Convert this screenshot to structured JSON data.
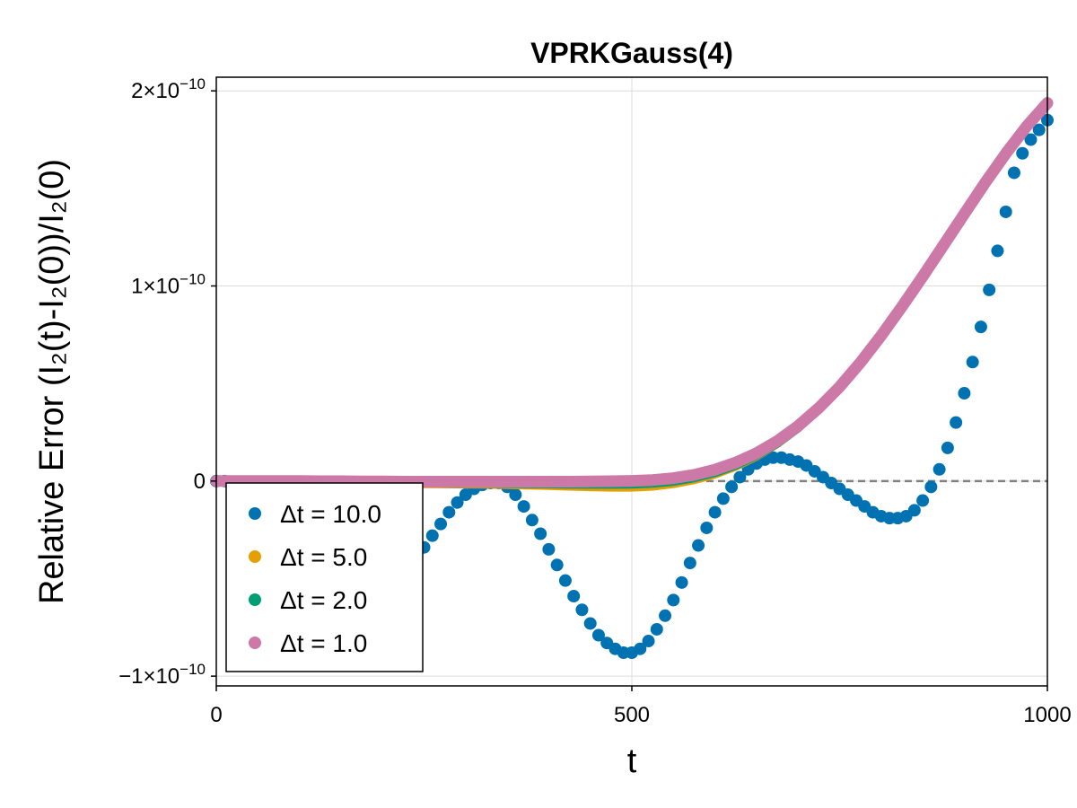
{
  "chart_data": {
    "type": "scatter",
    "title": "VPRKGauss(4)",
    "xlabel": "t",
    "ylabel": "Relative Error (I₂(t)-I₂(0))/I₂(0)",
    "xlim": [
      0,
      1000
    ],
    "ylim": [
      -1.05e-10,
      2.07e-10
    ],
    "x_ticks": [
      {
        "value": 0,
        "label": "0"
      },
      {
        "value": 500,
        "label": "500"
      },
      {
        "value": 1000,
        "label": "1000"
      }
    ],
    "y_ticks": [
      {
        "value": -1e-10,
        "mantissa": "−1×10",
        "exponent": "−10"
      },
      {
        "value": 0,
        "mantissa": "0",
        "exponent": ""
      },
      {
        "value": 1e-10,
        "mantissa": "1×10",
        "exponent": "−10"
      },
      {
        "value": 2e-10,
        "mantissa": "2×10",
        "exponent": "−10"
      }
    ],
    "grid": true,
    "reference_line": {
      "y": 0,
      "style": "dashed",
      "color": "#808080"
    },
    "legend_position": "bottom-left",
    "series": [
      {
        "name": "Δt = 10.0",
        "color": "#0072B2",
        "x": [
          0,
          10,
          20,
          30,
          40,
          50,
          60,
          70,
          80,
          90,
          100,
          110,
          120,
          130,
          140,
          150,
          160,
          170,
          180,
          190,
          200,
          210,
          220,
          230,
          240,
          250,
          260,
          270,
          280,
          290,
          300,
          310,
          320,
          330,
          340,
          350,
          360,
          370,
          380,
          390,
          400,
          410,
          420,
          430,
          440,
          450,
          460,
          470,
          480,
          490,
          500,
          510,
          520,
          530,
          540,
          550,
          560,
          570,
          580,
          590,
          600,
          610,
          620,
          630,
          640,
          650,
          660,
          670,
          680,
          690,
          700,
          710,
          720,
          730,
          740,
          750,
          760,
          770,
          780,
          790,
          800,
          810,
          820,
          830,
          840,
          850,
          860,
          870,
          880,
          890,
          900,
          910,
          920,
          930,
          940,
          950,
          960,
          970,
          980,
          990,
          1000
        ],
        "y": [
          0,
          0,
          -1e-12,
          -3e-12,
          -6e-12,
          -9e-12,
          -1.3e-11,
          -1.7e-11,
          -2.1e-11,
          -2.5e-11,
          -2.9e-11,
          -3.3e-11,
          -3.7e-11,
          -4.1e-11,
          -4.5e-11,
          -4.8e-11,
          -5e-11,
          -5.2e-11,
          -5.3e-11,
          -5.3e-11,
          -5.2e-11,
          -5e-11,
          -4.8e-11,
          -4.4e-11,
          -3.9e-11,
          -3.4e-11,
          -2.8e-11,
          -2.2e-11,
          -1.6e-11,
          -1.1e-11,
          -7e-12,
          -4e-12,
          -2e-12,
          -1e-12,
          -1e-12,
          -3e-12,
          -7e-12,
          -1.3e-11,
          -2e-11,
          -2.7e-11,
          -3.5e-11,
          -4.3e-11,
          -5.1e-11,
          -5.9e-11,
          -6.6e-11,
          -7.3e-11,
          -7.9e-11,
          -8.3e-11,
          -8.6e-11,
          -8.8e-11,
          -8.8e-11,
          -8.6e-11,
          -8.2e-11,
          -7.6e-11,
          -6.9e-11,
          -6.1e-11,
          -5.2e-11,
          -4.2e-11,
          -3.3e-11,
          -2.4e-11,
          -1.6e-11,
          -9e-12,
          -3e-12,
          2e-12,
          6e-12,
          9e-12,
          1.1e-11,
          1.2e-11,
          1.2e-11,
          1.1e-11,
          1e-11,
          8e-12,
          5e-12,
          2e-12,
          -1e-12,
          -4e-12,
          -7e-12,
          -1e-11,
          -1.3e-11,
          -1.6e-11,
          -1.8e-11,
          -1.9e-11,
          -1.9e-11,
          -1.8e-11,
          -1.5e-11,
          -1e-11,
          -3e-12,
          6e-12,
          1.7e-11,
          3e-11,
          4.5e-11,
          6.1e-11,
          7.9e-11,
          9.8e-11,
          1.18e-10,
          1.38e-10,
          1.58e-10,
          1.68e-10,
          1.75e-10,
          1.8e-10,
          1.85e-10
        ]
      },
      {
        "name": "Δt = 5.0",
        "color": "#E69F00",
        "x": [
          0,
          25,
          50,
          75,
          100,
          125,
          150,
          175,
          200,
          225,
          250,
          275,
          300,
          325,
          350,
          375,
          400,
          425,
          450,
          475,
          500,
          525,
          550,
          575,
          600,
          625,
          650,
          675,
          700,
          725,
          750,
          775,
          800,
          825,
          850,
          875,
          900,
          925,
          950,
          975,
          1000
        ],
        "y": [
          0,
          0,
          0,
          -1e-13,
          -2e-13,
          -3e-13,
          -5e-13,
          -7e-13,
          -9e-13,
          -1.1e-12,
          -1.3e-12,
          -1.4e-12,
          -1.5e-12,
          -1.6e-12,
          -1.8e-12,
          -2e-12,
          -2.3e-12,
          -2.6e-12,
          -2.9e-12,
          -3.1e-12,
          -3.1e-12,
          -2.6e-12,
          -1.3e-12,
          7e-13,
          3.6e-12,
          7.6e-12,
          1.28e-11,
          1.93e-11,
          2.73e-11,
          3.68e-11,
          4.78e-11,
          6.03e-11,
          7.43e-11,
          8.93e-11,
          1.048e-10,
          1.208e-10,
          1.368e-10,
          1.528e-10,
          1.678e-10,
          1.818e-10,
          1.938e-10
        ]
      },
      {
        "name": "Δt = 2.0",
        "color": "#009E73",
        "x": [
          0,
          25,
          50,
          75,
          100,
          125,
          150,
          175,
          200,
          225,
          250,
          275,
          300,
          325,
          350,
          375,
          400,
          425,
          450,
          475,
          500,
          525,
          550,
          575,
          600,
          625,
          650,
          675,
          700,
          725,
          750,
          775,
          800,
          825,
          850,
          875,
          900,
          925,
          950,
          975,
          1000
        ],
        "y": [
          0,
          0,
          0,
          -1e-13,
          -1e-13,
          -2e-13,
          -3e-13,
          -4e-13,
          -5e-13,
          -6e-13,
          -7e-13,
          -8e-13,
          -9e-13,
          -9e-13,
          -1e-12,
          -1.1e-12,
          -1.2e-12,
          -1.3e-12,
          -1.4e-12,
          -1.4e-12,
          -1.3e-12,
          -9e-13,
          1e-13,
          1.9e-12,
          4.6e-12,
          8.4e-12,
          1.34e-11,
          1.97e-11,
          2.76e-11,
          3.71e-11,
          4.82e-11,
          6.08e-11,
          7.48e-11,
          8.98e-11,
          1.053e-10,
          1.213e-10,
          1.373e-10,
          1.533e-10,
          1.683e-10,
          1.823e-10,
          1.943e-10
        ]
      },
      {
        "name": "Δt = 1.0",
        "color": "#CC79A7",
        "x": [
          0,
          25,
          50,
          75,
          100,
          125,
          150,
          175,
          200,
          225,
          250,
          275,
          300,
          325,
          350,
          375,
          400,
          425,
          450,
          475,
          500,
          525,
          550,
          575,
          600,
          625,
          650,
          675,
          700,
          725,
          750,
          775,
          800,
          825,
          850,
          875,
          900,
          925,
          950,
          975,
          1000
        ],
        "y": [
          0,
          0,
          0,
          0,
          0,
          -1e-13,
          -1e-13,
          -2e-13,
          -2e-13,
          -3e-13,
          -3e-13,
          -3e-13,
          -3e-13,
          -3e-13,
          -3e-13,
          -3e-13,
          -3e-13,
          -3e-13,
          -2e-13,
          -1e-13,
          1e-13,
          5e-13,
          1.5e-12,
          3.2e-12,
          5.8e-12,
          9.5e-12,
          1.43e-11,
          2.05e-11,
          2.82e-11,
          3.75e-11,
          4.83e-11,
          6.07e-11,
          7.45e-11,
          8.94e-11,
          1.049e-10,
          1.209e-10,
          1.369e-10,
          1.529e-10,
          1.679e-10,
          1.818e-10,
          1.938e-10
        ]
      }
    ]
  }
}
